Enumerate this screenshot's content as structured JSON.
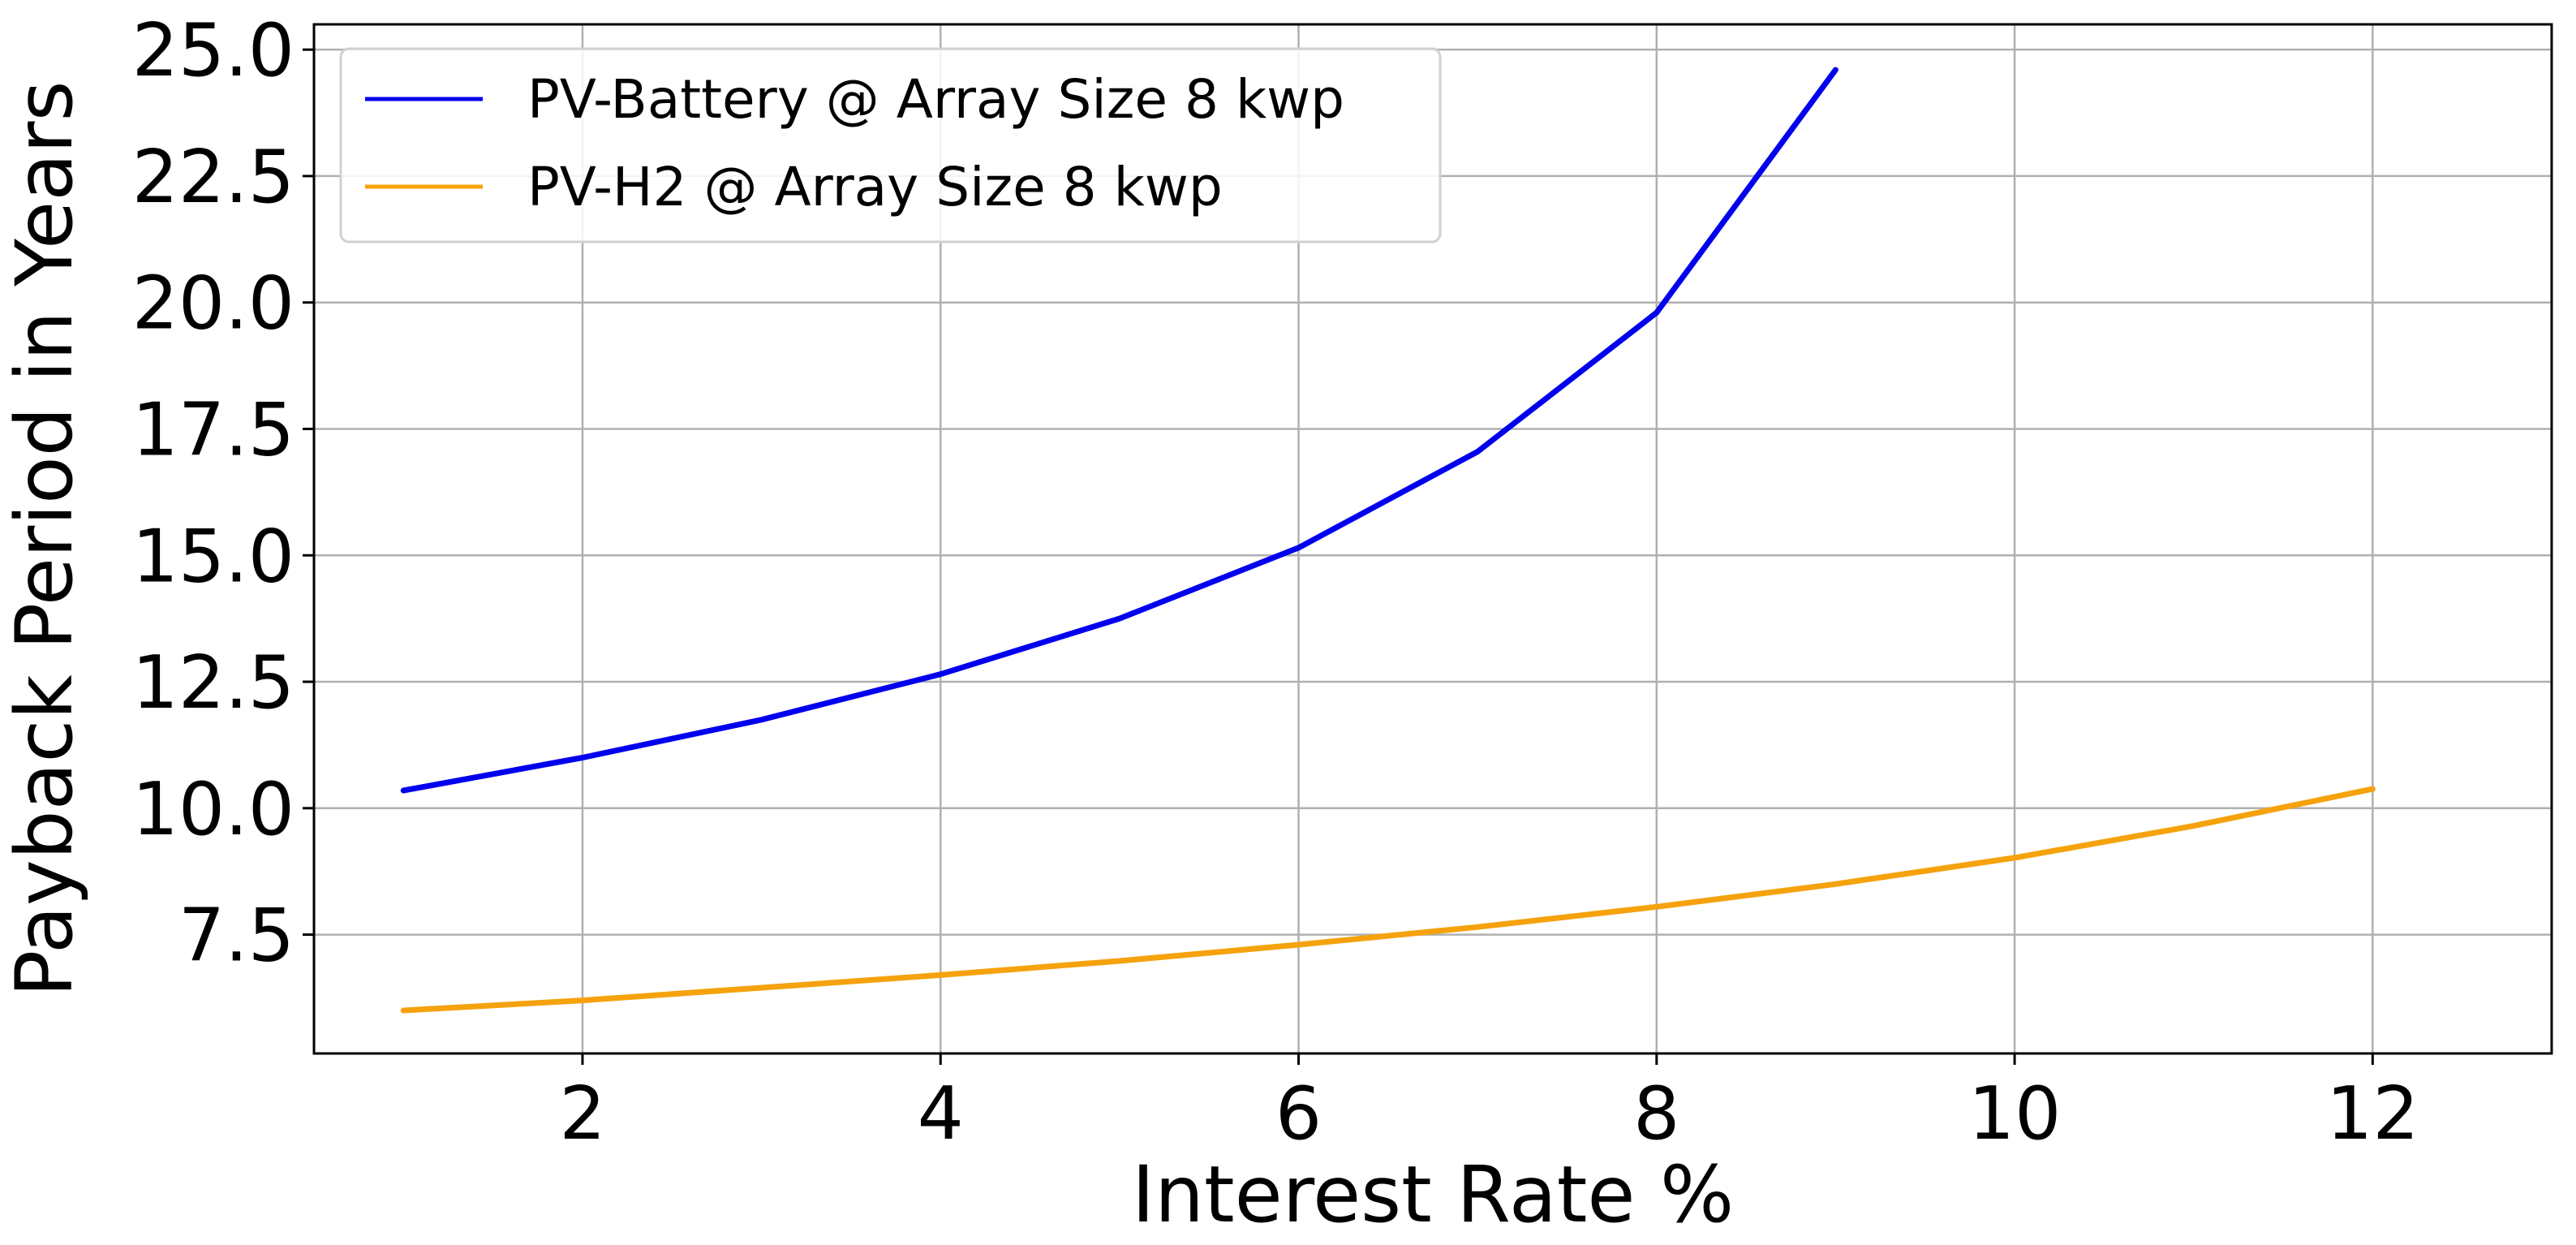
{
  "chart_data": {
    "type": "line",
    "title": "",
    "xlabel": "Interest Rate %",
    "ylabel": "Payback Period in Years",
    "xlim": [
      0.5,
      13.0
    ],
    "ylim": [
      5.15,
      25.5
    ],
    "x_ticks": [
      2,
      4,
      6,
      8,
      10,
      12
    ],
    "y_ticks": [
      7.5,
      10.0,
      12.5,
      15.0,
      17.5,
      20.0,
      22.5,
      25.0
    ],
    "x_tick_labels": [
      "2",
      "4",
      "6",
      "8",
      "10",
      "12"
    ],
    "y_tick_labels": [
      "7.5",
      "10.0",
      "12.5",
      "15.0",
      "17.5",
      "20.0",
      "22.5",
      "25.0"
    ],
    "grid": true,
    "legend_position": "top-left",
    "series": [
      {
        "name": "PV-Battery @ Array Size 8 kwp",
        "color": "#0000ee",
        "x": [
          1,
          2,
          3,
          4,
          5,
          6,
          7,
          8,
          9
        ],
        "y": [
          10.35,
          11.0,
          11.75,
          12.65,
          13.75,
          15.15,
          17.05,
          19.8,
          24.6
        ]
      },
      {
        "name": "PV-H2 @ Array Size 8 kwp",
        "color": "#f5a20c",
        "x": [
          1,
          2,
          3,
          4,
          5,
          6,
          7,
          8,
          9,
          10,
          11,
          12
        ],
        "y": [
          6.0,
          6.2,
          6.45,
          6.7,
          6.98,
          7.3,
          7.65,
          8.05,
          8.5,
          9.02,
          9.65,
          10.38
        ]
      }
    ]
  }
}
